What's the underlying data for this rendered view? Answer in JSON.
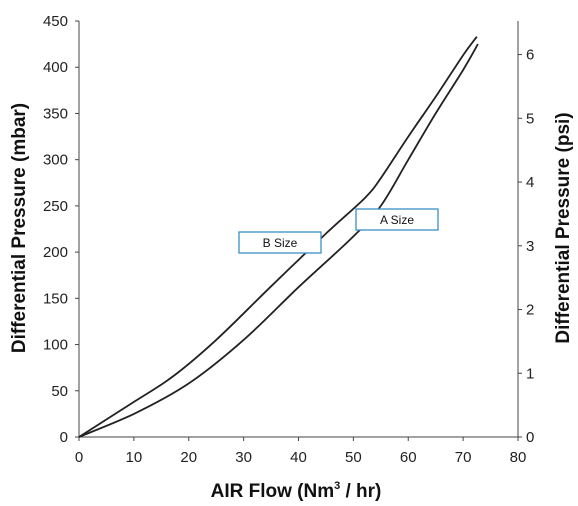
{
  "chart_data": {
    "type": "line",
    "x_axis": {
      "label_main": "AIR Flow (Nm",
      "label_sup": "3",
      "label_end": " / hr)",
      "lim": [
        0,
        80
      ],
      "ticks": [
        0,
        10,
        20,
        30,
        40,
        50,
        60,
        70,
        80
      ]
    },
    "y_axis_left": {
      "label": "Differential Pressure (mbar)",
      "lim": [
        0,
        450
      ],
      "ticks": [
        0,
        50,
        100,
        150,
        200,
        250,
        300,
        350,
        400,
        450
      ]
    },
    "y_axis_right": {
      "label": "Differential Pressure (psi)",
      "unit_per_left": 0.0145038,
      "ticks": [
        0,
        1,
        2,
        3,
        4,
        5,
        6
      ]
    },
    "series": [
      {
        "name": "B Size",
        "x": [
          0,
          10,
          17,
          25,
          35,
          45,
          52,
          55,
          60,
          65,
          70,
          72.5
        ],
        "y": [
          0,
          38,
          65,
          105,
          163,
          220,
          258,
          280,
          325,
          368,
          413,
          433
        ]
      },
      {
        "name": "A Size",
        "x": [
          0,
          10,
          20,
          30,
          40,
          50,
          55,
          60,
          65,
          70,
          72.7
        ],
        "y": [
          0,
          25,
          58,
          105,
          162,
          217,
          250,
          300,
          350,
          397,
          425
        ]
      }
    ],
    "annotations": [
      {
        "text": "B Size",
        "series": "B Size"
      },
      {
        "text": "A Size",
        "series": "A Size"
      }
    ],
    "colors": {
      "line": "#222222",
      "label_border": "#3a8fc7"
    },
    "grid": false,
    "legend": "none"
  }
}
